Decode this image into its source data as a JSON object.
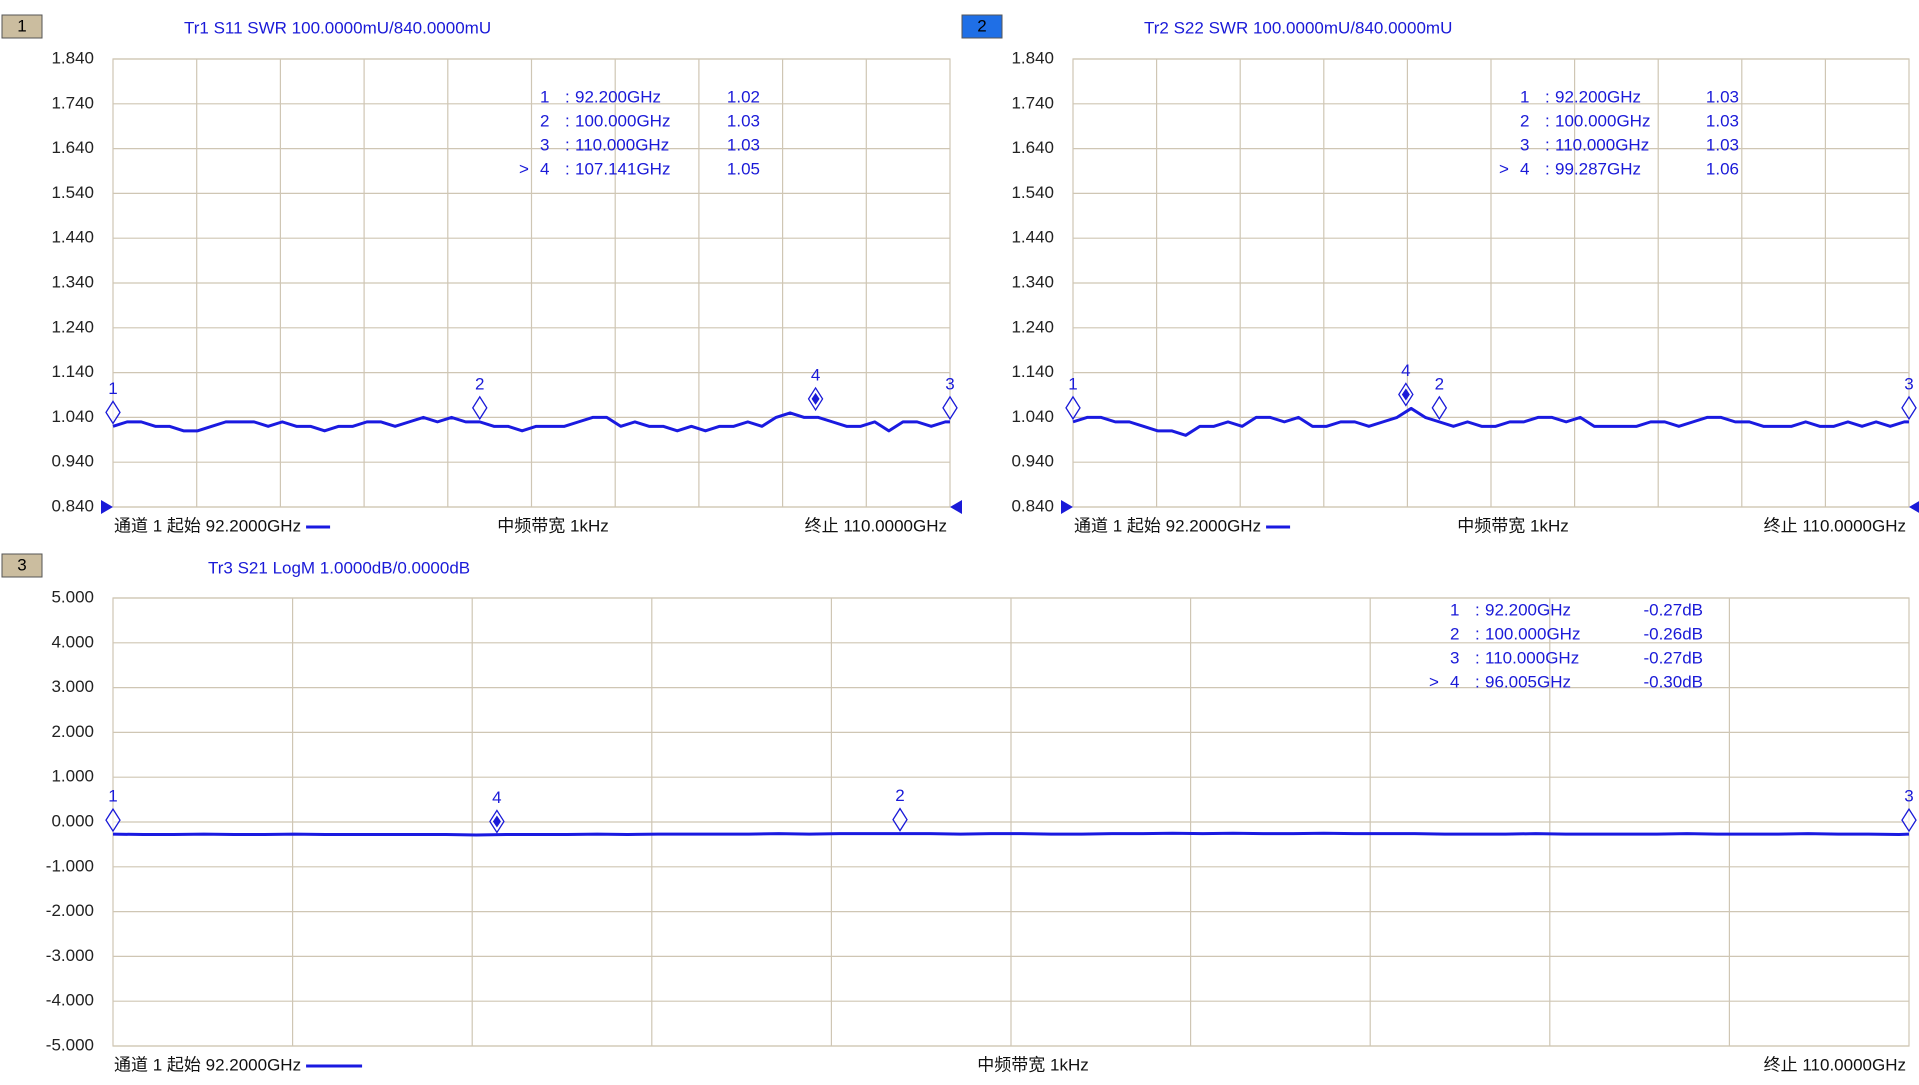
{
  "chart_data": [
    {
      "type": "line",
      "channel": "1",
      "channel_color": "#cbbd9f",
      "title": "Tr1 S11 SWR 100.0000mU/840.0000mU",
      "x": [
        92.2,
        92.5,
        92.8,
        93.1,
        93.4,
        93.7,
        94.0,
        94.3,
        94.6,
        94.9,
        95.2,
        95.5,
        95.8,
        96.1,
        96.4,
        96.7,
        97.0,
        97.3,
        97.6,
        97.9,
        98.2,
        98.5,
        98.8,
        99.1,
        99.4,
        99.7,
        100.0,
        100.3,
        100.6,
        100.9,
        101.2,
        101.5,
        101.8,
        102.1,
        102.4,
        102.7,
        103.0,
        103.3,
        103.6,
        103.9,
        104.2,
        104.5,
        104.8,
        105.1,
        105.4,
        105.7,
        106.0,
        106.3,
        106.6,
        106.9,
        107.2,
        107.5,
        107.8,
        108.1,
        108.4,
        108.7,
        109.0,
        109.3,
        109.6,
        109.9,
        110.0
      ],
      "series": [
        {
          "color": "#1a1ae0",
          "values": [
            1.02,
            1.03,
            1.03,
            1.02,
            1.02,
            1.01,
            1.01,
            1.02,
            1.03,
            1.03,
            1.03,
            1.02,
            1.03,
            1.02,
            1.02,
            1.01,
            1.02,
            1.02,
            1.03,
            1.03,
            1.02,
            1.03,
            1.04,
            1.03,
            1.04,
            1.03,
            1.03,
            1.02,
            1.02,
            1.01,
            1.02,
            1.02,
            1.02,
            1.03,
            1.04,
            1.04,
            1.02,
            1.03,
            1.02,
            1.02,
            1.01,
            1.02,
            1.01,
            1.02,
            1.02,
            1.03,
            1.02,
            1.04,
            1.05,
            1.04,
            1.04,
            1.03,
            1.02,
            1.02,
            1.03,
            1.01,
            1.03,
            1.03,
            1.02,
            1.03,
            1.03
          ]
        }
      ],
      "xlim": [
        92.2,
        110
      ],
      "ylim": [
        0.84,
        1.84
      ],
      "yticks": [
        {
          "value": 0.84,
          "label": "0.840"
        },
        {
          "value": 0.94,
          "label": "0.940"
        },
        {
          "value": 1.04,
          "label": "1.040"
        },
        {
          "value": 1.14,
          "label": "1.140"
        },
        {
          "value": 1.24,
          "label": "1.240"
        },
        {
          "value": 1.34,
          "label": "1.340"
        },
        {
          "value": 1.44,
          "label": "1.440"
        },
        {
          "value": 1.54,
          "label": "1.540"
        },
        {
          "value": 1.64,
          "label": "1.640"
        },
        {
          "value": 1.74,
          "label": "1.740"
        },
        {
          "value": 1.84,
          "label": "1.840"
        }
      ],
      "grid": true,
      "start_label": "通道 1 起始 92.2000GHz",
      "center_label": "中频带宽 1kHz",
      "stop_label": "终止 110.0000GHz",
      "marker_separator": ":",
      "active_symbol": ">",
      "markers": [
        {
          "id": "1",
          "x": {
            "value": 92.2,
            "label": "92.200GHz"
          },
          "y": 1.02,
          "active": false
        },
        {
          "id": "2",
          "x": {
            "value": 100,
            "label": "100.000GHz"
          },
          "y": 1.03,
          "active": false
        },
        {
          "id": "3",
          "x": {
            "value": 110,
            "label": "110.000GHz"
          },
          "y": 1.03,
          "active": false
        },
        {
          "id": "4",
          "x": {
            "value": 107.141,
            "label": "107.141GHz"
          },
          "y": 1.05,
          "active": true
        }
      ]
    },
    {
      "type": "line",
      "channel": "2",
      "channel_color": "#1f6fe6",
      "title": "Tr2 S22 SWR 100.0000mU/840.0000mU",
      "x": [
        92.2,
        92.5,
        92.8,
        93.1,
        93.4,
        93.7,
        94.0,
        94.3,
        94.6,
        94.9,
        95.2,
        95.5,
        95.8,
        96.1,
        96.4,
        96.7,
        97.0,
        97.3,
        97.6,
        97.9,
        98.2,
        98.5,
        98.8,
        99.1,
        99.4,
        99.7,
        100.0,
        100.3,
        100.6,
        100.9,
        101.2,
        101.5,
        101.8,
        102.1,
        102.4,
        102.7,
        103.0,
        103.3,
        103.6,
        103.9,
        104.2,
        104.5,
        104.8,
        105.1,
        105.4,
        105.7,
        106.0,
        106.3,
        106.6,
        106.9,
        107.2,
        107.5,
        107.8,
        108.1,
        108.4,
        108.7,
        109.0,
        109.3,
        109.6,
        109.9,
        110.0
      ],
      "series": [
        {
          "color": "#1a1ae0",
          "values": [
            1.03,
            1.04,
            1.04,
            1.03,
            1.03,
            1.02,
            1.01,
            1.01,
            1.0,
            1.02,
            1.02,
            1.03,
            1.02,
            1.04,
            1.04,
            1.03,
            1.04,
            1.02,
            1.02,
            1.03,
            1.03,
            1.02,
            1.03,
            1.04,
            1.06,
            1.04,
            1.03,
            1.02,
            1.03,
            1.02,
            1.02,
            1.03,
            1.03,
            1.04,
            1.04,
            1.03,
            1.04,
            1.02,
            1.02,
            1.02,
            1.02,
            1.03,
            1.03,
            1.02,
            1.03,
            1.04,
            1.04,
            1.03,
            1.03,
            1.02,
            1.02,
            1.02,
            1.03,
            1.02,
            1.02,
            1.03,
            1.02,
            1.03,
            1.02,
            1.03,
            1.03
          ]
        }
      ],
      "xlim": [
        92.2,
        110
      ],
      "ylim": [
        0.84,
        1.84
      ],
      "yticks": [
        {
          "value": 0.84,
          "label": "0.840"
        },
        {
          "value": 0.94,
          "label": "0.940"
        },
        {
          "value": 1.04,
          "label": "1.040"
        },
        {
          "value": 1.14,
          "label": "1.140"
        },
        {
          "value": 1.24,
          "label": "1.240"
        },
        {
          "value": 1.34,
          "label": "1.340"
        },
        {
          "value": 1.44,
          "label": "1.440"
        },
        {
          "value": 1.54,
          "label": "1.540"
        },
        {
          "value": 1.64,
          "label": "1.640"
        },
        {
          "value": 1.74,
          "label": "1.740"
        },
        {
          "value": 1.84,
          "label": "1.840"
        }
      ],
      "grid": true,
      "start_label": "通道 1 起始 92.2000GHz",
      "center_label": "中频带宽 1kHz",
      "stop_label": "终止 110.0000GHz",
      "marker_separator": ":",
      "active_symbol": ">",
      "markers": [
        {
          "id": "1",
          "x": {
            "value": 92.2,
            "label": "92.200GHz"
          },
          "y": 1.03,
          "active": false
        },
        {
          "id": "2",
          "x": {
            "value": 100,
            "label": "100.000GHz"
          },
          "y": 1.03,
          "active": false
        },
        {
          "id": "3",
          "x": {
            "value": 110,
            "label": "110.000GHz"
          },
          "y": 1.03,
          "active": false
        },
        {
          "id": "4",
          "x": {
            "value": 99.287,
            "label": "99.287GHz"
          },
          "y": 1.06,
          "active": true
        }
      ]
    },
    {
      "type": "line",
      "channel": "3",
      "channel_color": "#cbbd9f",
      "title": "Tr3 S21 LogM 1.0000dB/0.0000dB",
      "x": [
        92.2,
        92.5,
        92.8,
        93.1,
        93.4,
        93.7,
        94.0,
        94.3,
        94.6,
        94.9,
        95.2,
        95.5,
        95.8,
        96.1,
        96.4,
        96.7,
        97.0,
        97.3,
        97.6,
        97.9,
        98.2,
        98.5,
        98.8,
        99.1,
        99.4,
        99.7,
        100.0,
        100.3,
        100.6,
        100.9,
        101.2,
        101.5,
        101.8,
        102.1,
        102.4,
        102.7,
        103.0,
        103.3,
        103.6,
        103.9,
        104.2,
        104.5,
        104.8,
        105.1,
        105.4,
        105.7,
        106.0,
        106.3,
        106.6,
        106.9,
        107.2,
        107.5,
        107.8,
        108.1,
        108.4,
        108.7,
        109.0,
        109.3,
        109.6,
        109.9,
        110.0
      ],
      "series": [
        {
          "color": "#1a1ae0",
          "values": [
            -0.27,
            -0.28,
            -0.28,
            -0.27,
            -0.28,
            -0.28,
            -0.27,
            -0.28,
            -0.28,
            -0.28,
            -0.28,
            -0.28,
            -0.29,
            -0.28,
            -0.28,
            -0.28,
            -0.27,
            -0.28,
            -0.27,
            -0.27,
            -0.27,
            -0.27,
            -0.26,
            -0.27,
            -0.26,
            -0.26,
            -0.26,
            -0.26,
            -0.27,
            -0.26,
            -0.26,
            -0.27,
            -0.27,
            -0.26,
            -0.26,
            -0.25,
            -0.26,
            -0.25,
            -0.26,
            -0.26,
            -0.25,
            -0.26,
            -0.26,
            -0.26,
            -0.27,
            -0.27,
            -0.27,
            -0.26,
            -0.27,
            -0.27,
            -0.27,
            -0.27,
            -0.26,
            -0.27,
            -0.27,
            -0.27,
            -0.26,
            -0.27,
            -0.27,
            -0.28,
            -0.27
          ]
        }
      ],
      "xlim": [
        92.2,
        110
      ],
      "ylim": [
        -5,
        5
      ],
      "yticks": [
        {
          "value": -5,
          "label": "-5.000"
        },
        {
          "value": -4,
          "label": "-4.000"
        },
        {
          "value": -3,
          "label": "-3.000"
        },
        {
          "value": -2,
          "label": "-2.000"
        },
        {
          "value": -1,
          "label": "-1.000"
        },
        {
          "value": 0,
          "label": "0.000"
        },
        {
          "value": 1,
          "label": "1.000"
        },
        {
          "value": 2,
          "label": "2.000"
        },
        {
          "value": 3,
          "label": "3.000"
        },
        {
          "value": 4,
          "label": "4.000"
        },
        {
          "value": 5,
          "label": "5.000"
        }
      ],
      "grid": true,
      "start_label": "通道 1 起始 92.2000GHz",
      "center_label": "中频带宽 1kHz",
      "stop_label": "终止 110.0000GHz",
      "marker_separator": ":",
      "active_symbol": ">",
      "markers": [
        {
          "id": "1",
          "x": {
            "value": 92.2,
            "label": "92.200GHz"
          },
          "y": {
            "value": -0.27,
            "label": "-0.27dB"
          },
          "active": false
        },
        {
          "id": "2",
          "x": {
            "value": 100,
            "label": "100.000GHz"
          },
          "y": {
            "value": -0.26,
            "label": "-0.26dB"
          },
          "active": false
        },
        {
          "id": "3",
          "x": {
            "value": 110,
            "label": "110.000GHz"
          },
          "y": {
            "value": -0.27,
            "label": "-0.27dB"
          },
          "active": false
        },
        {
          "id": "4",
          "x": {
            "value": 96.005,
            "label": "96.005GHz"
          },
          "y": {
            "value": -0.3,
            "label": "-0.30dB"
          },
          "active": true
        }
      ]
    }
  ]
}
